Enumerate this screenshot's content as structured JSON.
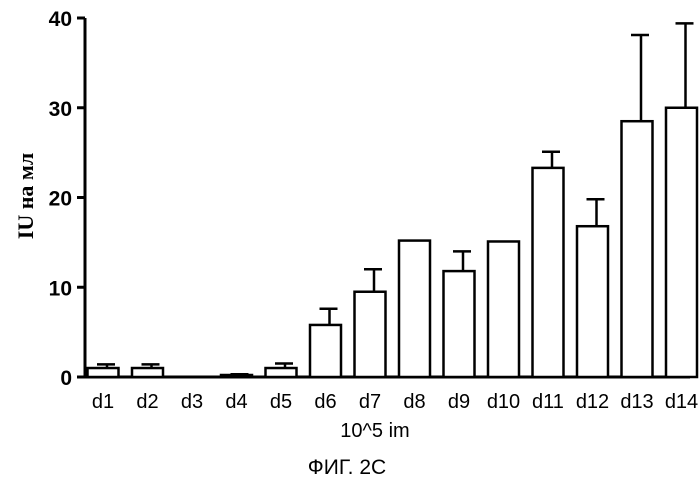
{
  "chart_data": {
    "type": "bar",
    "title": "",
    "xlabel": "10^5 im",
    "ylabel": "IU на мл",
    "caption": "ФИГ. 2С",
    "ylim": [
      0,
      40
    ],
    "yticks": [
      "0",
      "10",
      "20",
      "30",
      "40"
    ],
    "grid": false,
    "categories": [
      "d1",
      "d2",
      "d3",
      "d4",
      "d5",
      "d6",
      "d7",
      "d8",
      "d9",
      "d10",
      "d11",
      "d12",
      "d13",
      "d14"
    ],
    "values": [
      1.0,
      1.0,
      0,
      0.1,
      1.0,
      5.8,
      9.5,
      15.2,
      11.8,
      15.1,
      23.3,
      16.8,
      28.5,
      30.0
    ],
    "errors": [
      0.4,
      0.4,
      0,
      0.2,
      0.5,
      1.8,
      2.5,
      0,
      2.2,
      0,
      1.8,
      3.0,
      9.6,
      9.4
    ]
  }
}
